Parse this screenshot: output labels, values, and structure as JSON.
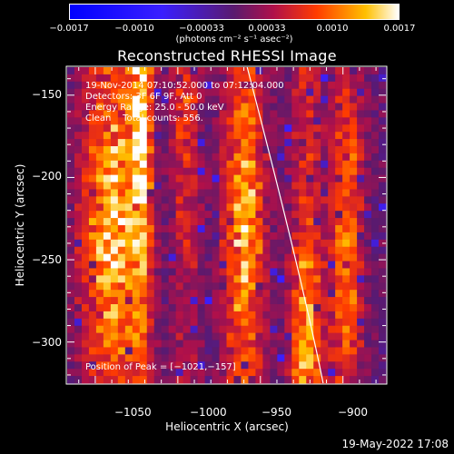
{
  "colorbar": {
    "ticks": [
      "−0.0017",
      "−0.0010",
      "−0.00033",
      "0.00033",
      "0.0010",
      "0.0017"
    ],
    "units": "(photons cm⁻² s⁻¹ asec⁻²)",
    "range": [
      -0.0017,
      0.0017
    ]
  },
  "footer": {
    "timestamp": "19-May-2022 17:08"
  },
  "chart_data": {
    "type": "heatmap",
    "title": "Reconstructed RHESSI Image",
    "xlabel": "Heliocentric X (arcsec)",
    "ylabel": "Heliocentric Y (arcsec)",
    "xlim": [
      -1067,
      -874
    ],
    "ylim": [
      -325,
      -133
    ],
    "x_ticks": [
      "−1050",
      "−1000",
      "−950",
      "−900"
    ],
    "x_tick_values": [
      -1050,
      -1000,
      -950,
      -900
    ],
    "y_ticks": [
      "−150",
      "−200",
      "−250",
      "−300"
    ],
    "y_tick_values": [
      -150,
      -200,
      -250,
      -300
    ],
    "annotations": [
      "19-Nov-2014 07:10:52.000 to 07:12:04.000",
      "Detectors: 3F 6F 9F, Att 0",
      "Energy Range: 25.0 - 50.0 keV",
      "Clean    Total counts: 556."
    ],
    "peak_label": "Position of Peak = [−1021,−157]",
    "bands": [
      {
        "x_center": -1040,
        "width": 25,
        "peak_y": -230,
        "intensity": 0.0017
      },
      {
        "x_center": -1022,
        "width": 10,
        "peak_y": -160,
        "intensity": 0.0016
      },
      {
        "x_center": -995,
        "width": 12,
        "peak_y": -180,
        "intensity": 0.0008
      },
      {
        "x_center": -960,
        "width": 18,
        "peak_y": -230,
        "intensity": 0.0015
      },
      {
        "x_center": -922,
        "width": 14,
        "peak_y": -300,
        "intensity": 0.0014
      },
      {
        "x_center": -898,
        "width": 14,
        "peak_y": -245,
        "intensity": 0.0013
      }
    ],
    "limb_curve": [
      [
        -958,
        -133
      ],
      [
        -925,
        -260
      ],
      [
        -912,
        -325
      ]
    ]
  }
}
